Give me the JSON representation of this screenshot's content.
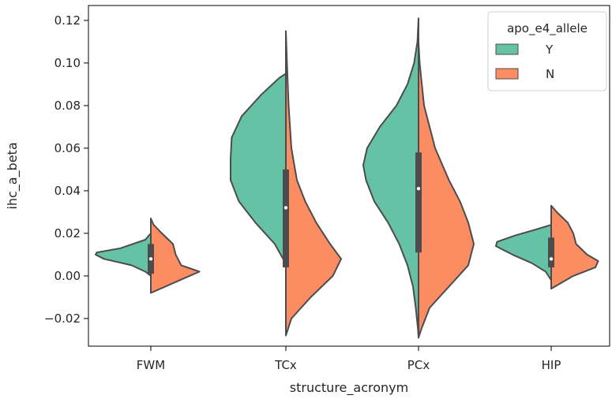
{
  "chart_data": {
    "type": "violin",
    "split": true,
    "categories": [
      "FWM",
      "TCx",
      "PCx",
      "HIP"
    ],
    "xlabel": "structure_acronym",
    "ylabel": "ihc_a_beta",
    "ylim": [
      -0.033,
      0.127
    ],
    "yticks": [
      -0.02,
      0.0,
      0.02,
      0.04,
      0.06,
      0.08,
      0.1,
      0.12
    ],
    "ytick_labels": [
      "−0.02",
      "0.00",
      "0.02",
      "0.04",
      "0.06",
      "0.08",
      "0.10",
      "0.12"
    ],
    "legend": {
      "title": "apo_e4_allele",
      "position": "top-right",
      "entries": [
        {
          "label": "Y",
          "color": "#66c2a5"
        },
        {
          "label": "N",
          "color": "#fc8d62"
        }
      ]
    },
    "series": [
      {
        "name": "Y",
        "side": "left",
        "color": "#66c2a5",
        "violins": [
          {
            "category": "FWM",
            "profile": [
              [
                0.02,
                0.0
              ],
              [
                0.017,
                0.1
              ],
              [
                0.013,
                0.55
              ],
              [
                0.011,
                0.98
              ],
              [
                0.01,
                1.0
              ],
              [
                0.008,
                0.85
              ],
              [
                0.005,
                0.35
              ],
              [
                0.002,
                0.1
              ],
              [
                0.0,
                0.0
              ]
            ]
          },
          {
            "category": "TCx",
            "profile": [
              [
                0.095,
                0.0
              ],
              [
                0.093,
                0.12
              ],
              [
                0.085,
                0.45
              ],
              [
                0.075,
                0.8
              ],
              [
                0.065,
                0.98
              ],
              [
                0.055,
                1.0
              ],
              [
                0.045,
                1.0
              ],
              [
                0.035,
                0.85
              ],
              [
                0.025,
                0.55
              ],
              [
                0.015,
                0.2
              ],
              [
                0.008,
                0.05
              ],
              [
                0.005,
                0.0
              ]
            ]
          },
          {
            "category": "PCx",
            "profile": [
              [
                0.121,
                0.0
              ],
              [
                0.11,
                0.02
              ],
              [
                0.1,
                0.08
              ],
              [
                0.09,
                0.2
              ],
              [
                0.08,
                0.4
              ],
              [
                0.07,
                0.7
              ],
              [
                0.06,
                0.93
              ],
              [
                0.052,
                1.0
              ],
              [
                0.045,
                0.95
              ],
              [
                0.035,
                0.8
              ],
              [
                0.025,
                0.55
              ],
              [
                0.015,
                0.35
              ],
              [
                0.005,
                0.2
              ],
              [
                -0.005,
                0.1
              ],
              [
                -0.015,
                0.05
              ],
              [
                -0.025,
                0.01
              ],
              [
                -0.029,
                0.0
              ]
            ]
          },
          {
            "category": "HIP",
            "profile": [
              [
                0.024,
                0.0
              ],
              [
                0.022,
                0.25
              ],
              [
                0.019,
                0.65
              ],
              [
                0.016,
                0.98
              ],
              [
                0.014,
                1.0
              ],
              [
                0.01,
                0.7
              ],
              [
                0.006,
                0.35
              ],
              [
                0.002,
                0.1
              ],
              [
                -0.002,
                0.0
              ]
            ]
          }
        ]
      },
      {
        "name": "N",
        "side": "right",
        "color": "#fc8d62",
        "violins": [
          {
            "category": "FWM",
            "profile": [
              [
                0.027,
                0.0
              ],
              [
                0.024,
                0.05
              ],
              [
                0.02,
                0.2
              ],
              [
                0.015,
                0.4
              ],
              [
                0.01,
                0.45
              ],
              [
                0.005,
                0.55
              ],
              [
                0.002,
                0.88
              ],
              [
                0.0,
                0.7
              ],
              [
                -0.004,
                0.35
              ],
              [
                -0.008,
                0.0
              ]
            ]
          },
          {
            "category": "TCx",
            "profile": [
              [
                0.115,
                0.0
              ],
              [
                0.1,
                0.02
              ],
              [
                0.08,
                0.05
              ],
              [
                0.06,
                0.1
              ],
              [
                0.045,
                0.2
              ],
              [
                0.035,
                0.35
              ],
              [
                0.025,
                0.55
              ],
              [
                0.015,
                0.8
              ],
              [
                0.008,
                1.0
              ],
              [
                0.0,
                0.85
              ],
              [
                -0.01,
                0.45
              ],
              [
                -0.02,
                0.1
              ],
              [
                -0.028,
                0.0
              ]
            ]
          },
          {
            "category": "PCx",
            "profile": [
              [
                0.11,
                0.0
              ],
              [
                0.1,
                0.02
              ],
              [
                0.08,
                0.1
              ],
              [
                0.06,
                0.3
              ],
              [
                0.045,
                0.55
              ],
              [
                0.035,
                0.75
              ],
              [
                0.025,
                0.9
              ],
              [
                0.015,
                1.0
              ],
              [
                0.005,
                0.9
              ],
              [
                -0.005,
                0.55
              ],
              [
                -0.015,
                0.2
              ],
              [
                -0.025,
                0.05
              ],
              [
                -0.029,
                0.0
              ]
            ]
          },
          {
            "category": "HIP",
            "profile": [
              [
                0.033,
                0.0
              ],
              [
                0.03,
                0.1
              ],
              [
                0.025,
                0.3
              ],
              [
                0.02,
                0.4
              ],
              [
                0.015,
                0.45
              ],
              [
                0.01,
                0.65
              ],
              [
                0.007,
                0.85
              ],
              [
                0.004,
                0.8
              ],
              [
                0.0,
                0.4
              ],
              [
                -0.006,
                0.0
              ]
            ]
          }
        ]
      }
    ],
    "boxes": [
      {
        "category": "FWM",
        "whisker_low": 0.0,
        "q1": 0.001,
        "median": 0.008,
        "q3": 0.015,
        "whisker_high": 0.021
      },
      {
        "category": "TCx",
        "whisker_low": 0.0,
        "q1": 0.004,
        "median": 0.032,
        "q3": 0.05,
        "whisker_high": 0.095
      },
      {
        "category": "PCx",
        "whisker_low": -0.005,
        "q1": 0.011,
        "median": 0.041,
        "q3": 0.058,
        "whisker_high": 0.11
      },
      {
        "category": "HIP",
        "whisker_low": -0.004,
        "q1": 0.004,
        "median": 0.008,
        "q3": 0.018,
        "whisker_high": 0.026
      }
    ]
  }
}
